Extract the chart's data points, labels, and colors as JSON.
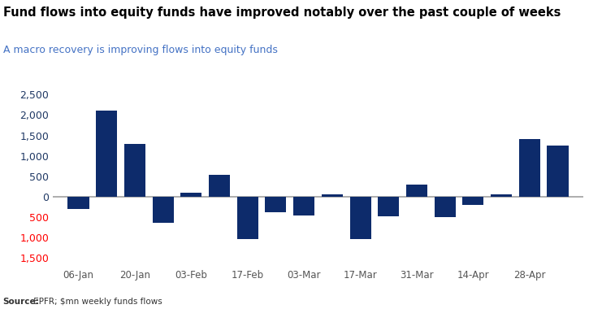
{
  "title": "Fund flows into equity funds have improved notably over the past couple of weeks",
  "subtitle": "A macro recovery is improving flows into equity funds",
  "source_bold": "Source:",
  "source_rest": " EPFR; $mn weekly funds flows",
  "bar_color": "#0D2B6B",
  "values": [
    -310,
    2100,
    1300,
    -650,
    100,
    540,
    -1050,
    -380,
    -470,
    50,
    -1050,
    -490,
    300,
    -500,
    -200,
    50,
    1420,
    1250
  ],
  "xtick_labels": [
    "06-Jan",
    "20-Jan",
    "03-Feb",
    "17-Feb",
    "03-Mar",
    "17-Mar",
    "31-Mar",
    "14-Apr",
    "28-Apr"
  ],
  "xtick_positions": [
    0,
    2,
    4,
    6,
    8,
    10,
    12,
    14,
    16
  ],
  "ylim": [
    -1700,
    2700
  ],
  "yticks": [
    -1500,
    -1000,
    -500,
    0,
    500,
    1000,
    1500,
    2000,
    2500
  ],
  "title_color": "#000000",
  "subtitle_color": "#4472C4",
  "negative_tick_color": "#FF0000",
  "positive_tick_color": "#1F3864",
  "zero_color": "#1F3864",
  "zero_line_color": "#A0A0A0",
  "background_color": "#FFFFFF",
  "title_fontsize": 10.5,
  "subtitle_fontsize": 9.0,
  "ytick_fontsize": 9,
  "xtick_fontsize": 8.5,
  "source_fontsize": 7.5
}
